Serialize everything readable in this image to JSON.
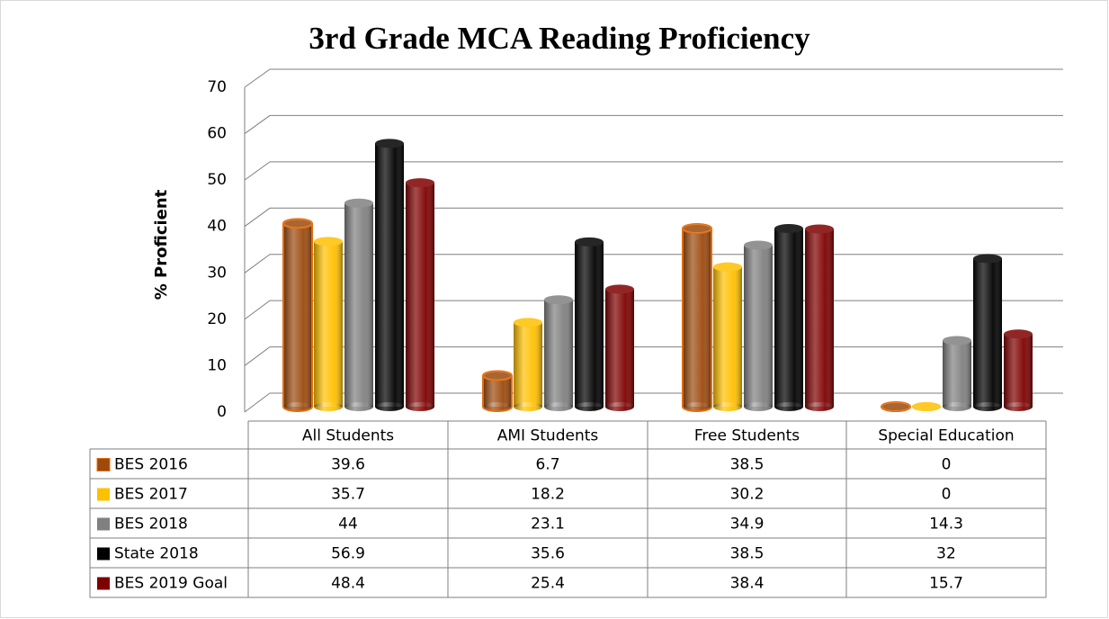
{
  "chart_data": {
    "type": "bar",
    "title": "3rd Grade MCA Reading Proficiency",
    "y_label": "% Proficient",
    "categories": [
      "All Students",
      "AMI Students",
      "Free Students",
      "Special Education"
    ],
    "series": [
      {
        "name": "BES 2016",
        "color": "#9c4a0e",
        "values": [
          39.6,
          6.7,
          38.5,
          0
        ]
      },
      {
        "name": "BES 2017",
        "color": "#ffc000",
        "values": [
          35.7,
          18.2,
          30.2,
          0
        ]
      },
      {
        "name": "BES 2018",
        "color": "#808080",
        "values": [
          44,
          23.1,
          34.9,
          14.3
        ]
      },
      {
        "name": "State 2018",
        "color": "#000000",
        "values": [
          56.9,
          35.6,
          38.5,
          32
        ]
      },
      {
        "name": "BES 2019 Goal",
        "color": "#7f0000",
        "values": [
          48.4,
          25.4,
          38.4,
          15.7
        ]
      }
    ],
    "ylim": [
      0,
      70
    ],
    "yticks": [
      0,
      10,
      20,
      30,
      40,
      50,
      60,
      70
    ],
    "grid": true
  }
}
